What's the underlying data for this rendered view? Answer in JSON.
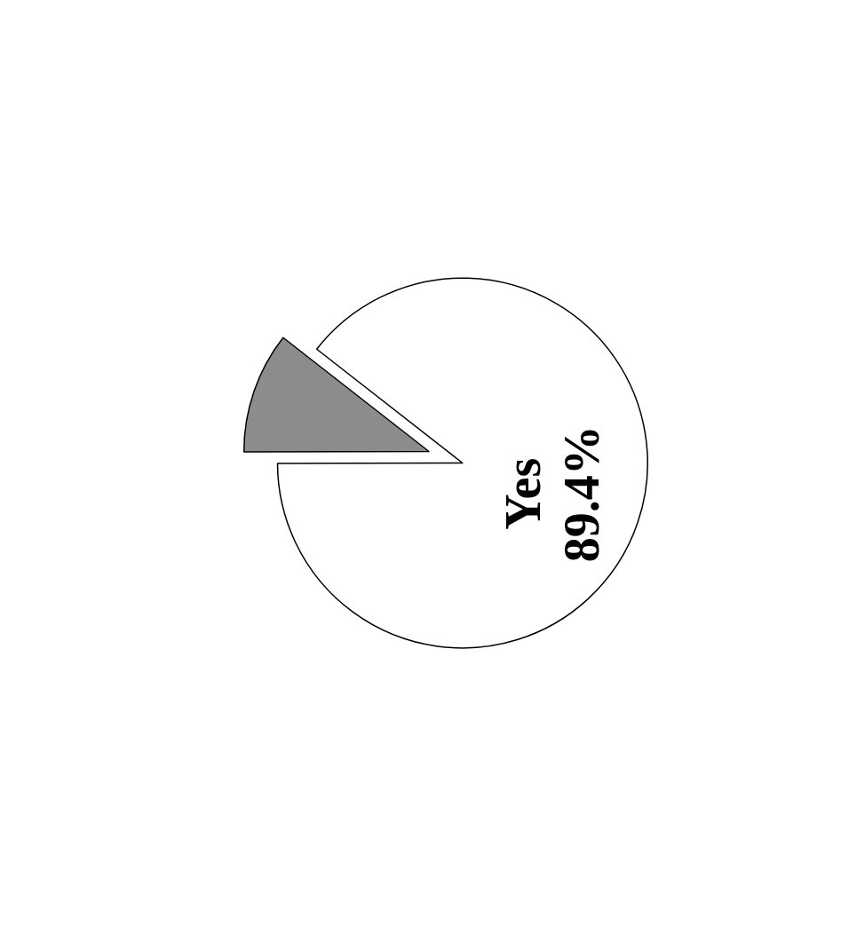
{
  "chart_data": {
    "type": "pie",
    "categories": [
      "Yes",
      null
    ],
    "values": [
      89.4,
      10.6
    ],
    "colors": [
      "#ffffff",
      "#8c8c8c"
    ],
    "value_labels": [
      "89.4%",
      null
    ],
    "legend": false
  }
}
